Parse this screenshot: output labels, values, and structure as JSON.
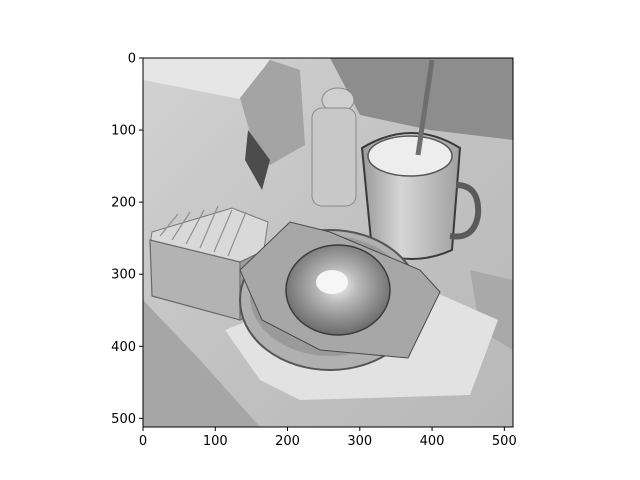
{
  "chart_data": {
    "type": "image",
    "title": "",
    "xlabel": "",
    "ylabel": "",
    "image_size": [
      512,
      512
    ],
    "colormap": "gray",
    "y_inverted": true,
    "xlim": [
      0,
      512
    ],
    "ylim": [
      512,
      0
    ],
    "xticks": [
      0,
      100,
      200,
      300,
      400,
      500
    ],
    "yticks": [
      0,
      100,
      200,
      300,
      400,
      500
    ],
    "xtick_labels": [
      "0",
      "100",
      "200",
      "300",
      "400",
      "500"
    ],
    "ytick_labels": [
      "0",
      "100",
      "200",
      "300",
      "400",
      "500"
    ],
    "grid": false,
    "image_content": "grayscale photo of a breakfast table: bagel sandwich wrapped in paper in a bowl, sugar packet caddy, mug of coffee with a spoon, salt shaker, napkin dispenser, on a napkin"
  }
}
